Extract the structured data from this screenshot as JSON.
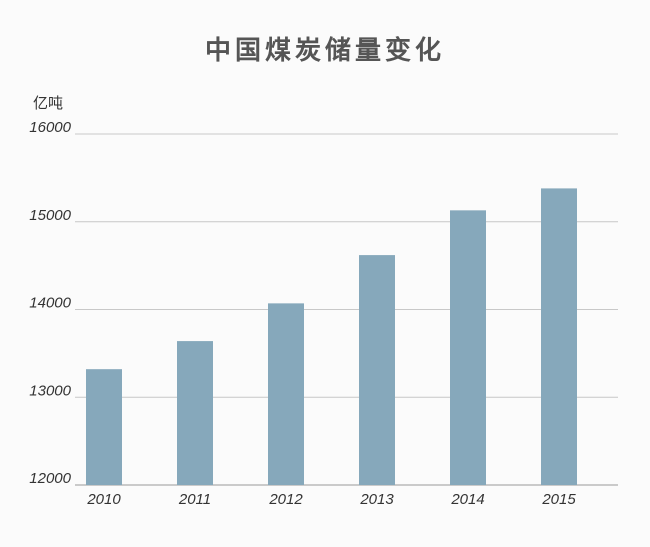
{
  "chart_data": {
    "type": "bar",
    "title": "中国煤炭储量变化",
    "unit_label": "亿吨",
    "categories": [
      "2010",
      "2011",
      "2012",
      "2013",
      "2014",
      "2015"
    ],
    "values": [
      13320,
      13640,
      14070,
      14620,
      15130,
      15380
    ],
    "ylim": [
      12000,
      16000
    ],
    "yticks": [
      12000,
      13000,
      14000,
      15000,
      16000
    ],
    "ytick_labels": [
      "12000",
      "13000",
      "14000",
      "15000",
      "16000"
    ],
    "grid": true,
    "bar_color": "#86a8bb",
    "grid_color": "#c8c8c8",
    "baseline_color": "#999999"
  }
}
